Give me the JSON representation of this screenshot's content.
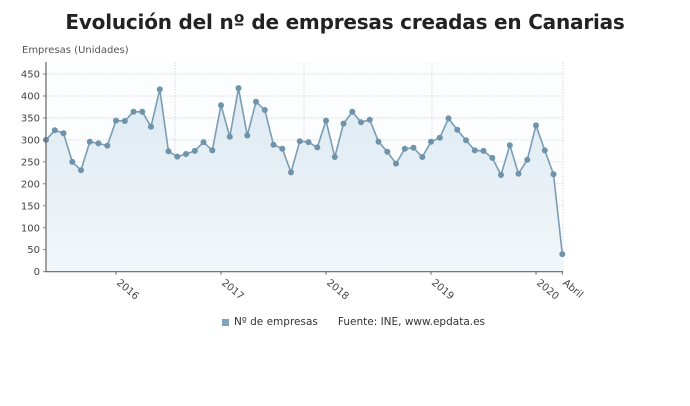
{
  "header": {
    "title": "Evolución del nº de empresas creadas en Canarias",
    "y_axis_label": "Empresas (Unidades)"
  },
  "legend": {
    "series_label": "Nº de empresas",
    "source": "Fuente: INE, www.epdata.es"
  },
  "colors": {
    "line": "#7a9db3",
    "marker": "#6f93aa",
    "fill_top": "#dde9f2",
    "fill_bottom": "#f2f7fa",
    "grid": "#d0d0d0",
    "axis": "#666666",
    "swatch": "#7fa3bc"
  },
  "chart_data": {
    "type": "area",
    "title": "Evolución del nº de empresas creadas en Canarias",
    "xlabel": "",
    "ylabel": "Empresas (Unidades)",
    "ylim": [
      0,
      450
    ],
    "yticks": [
      0,
      50,
      100,
      150,
      200,
      250,
      300,
      350,
      400,
      450
    ],
    "x_tick_labels": [
      {
        "label": "2016",
        "index": 8
      },
      {
        "label": "2017",
        "index": 20
      },
      {
        "label": "2018",
        "index": 32
      },
      {
        "label": "2019",
        "index": 44
      },
      {
        "label": "2020",
        "index": 56
      },
      {
        "label": "Abril",
        "index": 59
      }
    ],
    "grid": true,
    "legend_position": "bottom",
    "x": [
      "2015-05",
      "2015-06",
      "2015-07",
      "2015-08",
      "2015-09",
      "2015-10",
      "2015-11",
      "2015-12",
      "2016-01",
      "2016-02",
      "2016-03",
      "2016-04",
      "2016-05",
      "2016-06",
      "2016-07",
      "2016-08",
      "2016-09",
      "2016-10",
      "2016-11",
      "2016-12",
      "2017-01",
      "2017-02",
      "2017-03",
      "2017-04",
      "2017-05",
      "2017-06",
      "2017-07",
      "2017-08",
      "2017-09",
      "2017-10",
      "2017-11",
      "2017-12",
      "2018-01",
      "2018-02",
      "2018-03",
      "2018-04",
      "2018-05",
      "2018-06",
      "2018-07",
      "2018-08",
      "2018-09",
      "2018-10",
      "2018-11",
      "2018-12",
      "2019-01",
      "2019-02",
      "2019-03",
      "2019-04",
      "2019-05",
      "2019-06",
      "2019-07",
      "2019-08",
      "2019-09",
      "2019-10",
      "2019-11",
      "2019-12",
      "2020-01",
      "2020-02",
      "2020-03",
      "2020-04"
    ],
    "series": [
      {
        "name": "Nº de empresas",
        "values": [
          300,
          322,
          315,
          250,
          231,
          296,
          292,
          287,
          344,
          343,
          364,
          364,
          330,
          415,
          274,
          262,
          268,
          275,
          295,
          276,
          379,
          307,
          418,
          310,
          387,
          368,
          289,
          280,
          226,
          297,
          295,
          283,
          344,
          261,
          337,
          364,
          340,
          346,
          296,
          273,
          246,
          280,
          282,
          261,
          296,
          305,
          349,
          323,
          299,
          276,
          275,
          259,
          220,
          288,
          223,
          255,
          333,
          276,
          222,
          40
        ]
      }
    ]
  }
}
